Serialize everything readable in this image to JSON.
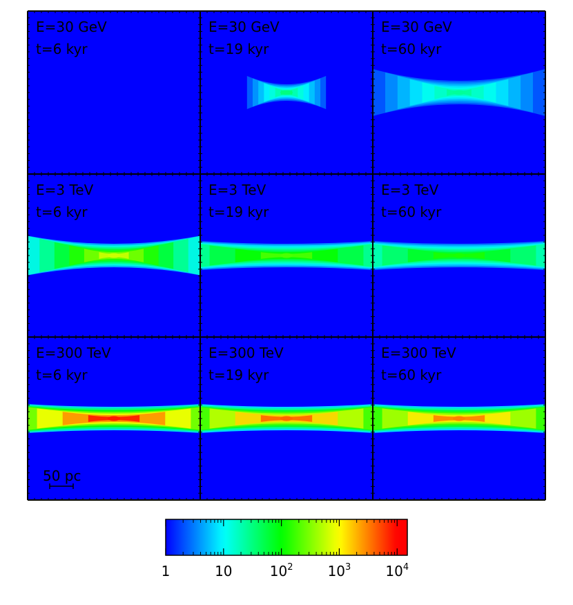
{
  "chart_data": {
    "type": "heatmap",
    "title": "",
    "xlabel": "",
    "ylabel": "",
    "grid": false,
    "rows": 3,
    "cols": 3,
    "panels": [
      {
        "energy_label": "E=30 GeV",
        "time_label": "t=6 kyr",
        "energy": "30 GeV",
        "time": "6 kyr",
        "spread": 0,
        "peak_log": 0
      },
      {
        "energy_label": "E=30 GeV",
        "time_label": "t=19 kyr",
        "energy": "30 GeV",
        "time": "19 kyr",
        "spread": 0.22,
        "peak_log": 1.5
      },
      {
        "energy_label": "E=30 GeV",
        "time_label": "t=60 kyr",
        "energy": "30 GeV",
        "time": "60 kyr",
        "spread": 0.48,
        "peak_log": 1.4
      },
      {
        "energy_label": "E=3 TeV",
        "time_label": "t=6 kyr",
        "energy": "3 TeV",
        "time": "6 kyr",
        "spread": 0.58,
        "peak_log": 2.8
      },
      {
        "energy_label": "E=3 TeV",
        "time_label": "t=19 kyr",
        "energy": "3 TeV",
        "time": "19 kyr",
        "spread": 1.0,
        "peak_log": 2.3
      },
      {
        "energy_label": "E=3 TeV",
        "time_label": "t=60 kyr",
        "energy": "3 TeV",
        "time": "60 kyr",
        "spread": 1.0,
        "peak_log": 2.1
      },
      {
        "energy_label": "E=300 TeV",
        "time_label": "t=6 kyr",
        "energy": "300 TeV",
        "time": "6 kyr",
        "spread": 1.0,
        "peak_log": 3.9
      },
      {
        "energy_label": "E=300 TeV",
        "time_label": "t=19 kyr",
        "energy": "300 TeV",
        "time": "19 kyr",
        "spread": 1.0,
        "peak_log": 3.6
      },
      {
        "energy_label": "E=300 TeV",
        "time_label": "t=60 kyr",
        "energy": "300 TeV",
        "time": "60 kyr",
        "spread": 1.0,
        "peak_log": 3.5
      }
    ],
    "scale_bar": {
      "label": "50 pc",
      "length_pc": 50
    },
    "colorbar": {
      "scale": "log",
      "range": [
        1,
        15000
      ],
      "ticks": [
        {
          "value": 1,
          "base": "1",
          "exp": ""
        },
        {
          "value": 10,
          "base": "10",
          "exp": ""
        },
        {
          "value": 100,
          "base": "10",
          "exp": "2"
        },
        {
          "value": 1000,
          "base": "10",
          "exp": "3"
        },
        {
          "value": 10000,
          "base": "10",
          "exp": "4"
        }
      ],
      "colors": [
        "#0000ff",
        "#00ffff",
        "#00ff00",
        "#ffff00",
        "#ff0000"
      ]
    }
  }
}
